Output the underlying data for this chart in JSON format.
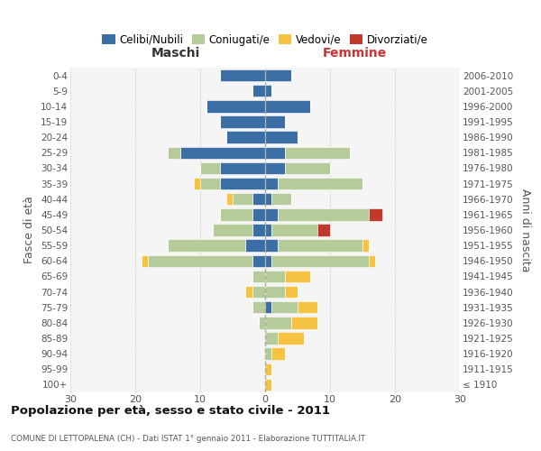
{
  "age_groups": [
    "100+",
    "95-99",
    "90-94",
    "85-89",
    "80-84",
    "75-79",
    "70-74",
    "65-69",
    "60-64",
    "55-59",
    "50-54",
    "45-49",
    "40-44",
    "35-39",
    "30-34",
    "25-29",
    "20-24",
    "15-19",
    "10-14",
    "5-9",
    "0-4"
  ],
  "birth_years": [
    "≤ 1910",
    "1911-1915",
    "1916-1920",
    "1921-1925",
    "1926-1930",
    "1931-1935",
    "1936-1940",
    "1941-1945",
    "1946-1950",
    "1951-1955",
    "1956-1960",
    "1961-1965",
    "1966-1970",
    "1971-1975",
    "1976-1980",
    "1981-1985",
    "1986-1990",
    "1991-1995",
    "1996-2000",
    "2001-2005",
    "2006-2010"
  ],
  "males_celibi": [
    0,
    0,
    0,
    0,
    0,
    0,
    0,
    0,
    2,
    3,
    2,
    2,
    2,
    7,
    7,
    13,
    6,
    7,
    9,
    2,
    7
  ],
  "males_coniugati": [
    0,
    0,
    0,
    0,
    1,
    2,
    2,
    2,
    16,
    12,
    6,
    5,
    3,
    3,
    3,
    2,
    0,
    0,
    0,
    0,
    0
  ],
  "males_vedovi": [
    0,
    0,
    0,
    0,
    0,
    0,
    1,
    0,
    1,
    0,
    0,
    0,
    1,
    1,
    0,
    0,
    0,
    0,
    0,
    0,
    0
  ],
  "males_divorziati": [
    0,
    0,
    0,
    0,
    0,
    0,
    0,
    0,
    0,
    0,
    0,
    0,
    0,
    0,
    0,
    0,
    0,
    0,
    0,
    0,
    0
  ],
  "females_nubili": [
    0,
    0,
    0,
    0,
    0,
    1,
    0,
    0,
    1,
    2,
    1,
    2,
    1,
    2,
    3,
    3,
    5,
    3,
    7,
    1,
    4
  ],
  "females_coniugate": [
    0,
    0,
    1,
    2,
    4,
    4,
    3,
    3,
    15,
    13,
    7,
    14,
    3,
    13,
    7,
    10,
    0,
    0,
    0,
    0,
    0
  ],
  "females_vedove": [
    1,
    1,
    2,
    4,
    4,
    3,
    2,
    4,
    1,
    1,
    0,
    0,
    0,
    0,
    0,
    0,
    0,
    0,
    0,
    0,
    0
  ],
  "females_divorziate": [
    0,
    0,
    0,
    0,
    0,
    0,
    0,
    0,
    0,
    0,
    2,
    2,
    0,
    0,
    0,
    0,
    0,
    0,
    0,
    0,
    0
  ],
  "color_celibi": "#3a6ea5",
  "color_coniugati": "#b5cb99",
  "color_vedovi": "#f5c242",
  "color_divorziati": "#c0392b",
  "title": "Popolazione per età, sesso e stato civile - 2011",
  "subtitle": "COMUNE DI LETTOPALENA (CH) - Dati ISTAT 1° gennaio 2011 - Elaborazione TUTTITALIA.IT",
  "ylabel_left": "Fasce di età",
  "ylabel_right": "Anni di nascita",
  "label_maschi": "Maschi",
  "label_femmine": "Femmine",
  "legend_labels": [
    "Celibi/Nubili",
    "Coniugati/e",
    "Vedovi/e",
    "Divorziati/e"
  ],
  "xlim": 30,
  "bg_color": "#f5f5f5",
  "grid_color": "#cccccc"
}
